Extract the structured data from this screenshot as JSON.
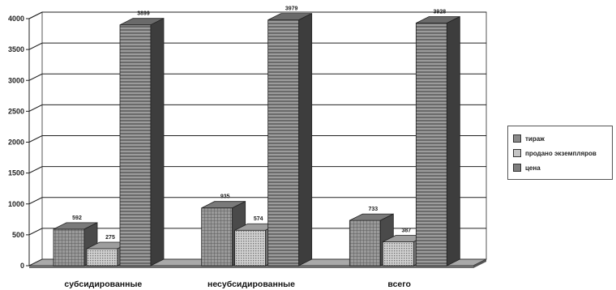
{
  "chart_data": {
    "type": "bar",
    "title": "",
    "xlabel": "",
    "ylabel": "",
    "ylim": [
      0,
      4000
    ],
    "yticks": [
      0,
      500,
      1000,
      1500,
      2000,
      2500,
      3000,
      3500,
      4000
    ],
    "grid": true,
    "three_d": true,
    "legend_position": "right",
    "categories": [
      "субсидированные",
      "несубсидированные",
      "всего"
    ],
    "series": [
      {
        "name": "тираж",
        "values": [
          592,
          935,
          733
        ],
        "labels": [
          "592",
          "935",
          "733"
        ],
        "color": "#8a8a8a",
        "pattern": "grid"
      },
      {
        "name": "продано экземпляров",
        "values": [
          275,
          574,
          387
        ],
        "labels": [
          "275",
          "574",
          "387"
        ],
        "color": "#b8b8b8",
        "pattern": "dots"
      },
      {
        "name": "цена",
        "values": [
          3899,
          3979,
          3928
        ],
        "labels": [
          "3899",
          "3979",
          "3928"
        ],
        "color": "#7d7d7d",
        "pattern": "stripes"
      }
    ]
  }
}
